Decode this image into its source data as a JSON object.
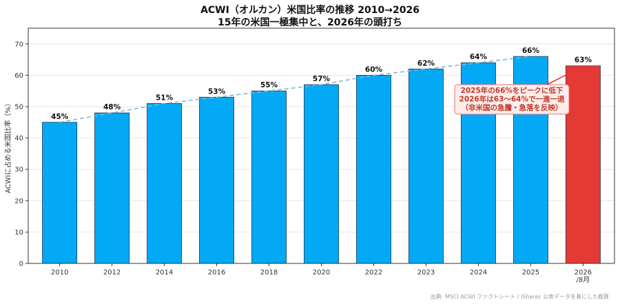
{
  "chart_data": {
    "type": "bar",
    "title": "ACWI（オルカン）米国比率の推移 2010→2026",
    "subtitle": "15年の米国一極集中と、2026年の頭打ち",
    "xlabel": "",
    "ylabel": "ACWIに占める米国比率（%）",
    "ylim": [
      0,
      75
    ],
    "yticks": [
      0,
      10,
      20,
      30,
      40,
      50,
      60,
      70
    ],
    "grid": "horizontal",
    "categories": [
      [
        "2010"
      ],
      [
        "2012"
      ],
      [
        "2014"
      ],
      [
        "2016"
      ],
      [
        "2018"
      ],
      [
        "2020"
      ],
      [
        "2022"
      ],
      [
        "2023"
      ],
      [
        "2024"
      ],
      [
        "2025"
      ],
      [
        "2026",
        "/8月"
      ]
    ],
    "values": [
      45,
      48,
      51,
      53,
      55,
      57,
      60,
      62,
      64,
      66,
      63
    ],
    "data_labels": [
      "45%",
      "48%",
      "51%",
      "53%",
      "55%",
      "57%",
      "60%",
      "62%",
      "64%",
      "66%",
      "63%"
    ],
    "highlight_index": 10,
    "trend_line": {
      "from_index": 0,
      "to_index": 9,
      "style": "dashed"
    },
    "annotation": {
      "lines": [
        "2025年の66%をピークに低下",
        "2026年は63〜64%で一進一退",
        "（非米国の急騰・急落を反映）"
      ],
      "points_to_index": 10
    },
    "source": "出典: MSCI ACWI ファクトシート / iShares 公表データを基にした概算",
    "colors": {
      "bar": "#03a9f4",
      "highlight_bar": "#e53935",
      "bar_edge": "#1f3b57",
      "trend": "#7fb8d6",
      "annotation_text": "#c0392b",
      "annotation_bg": "#fdecea",
      "annotation_border": "#e57373",
      "grid": "#e6e6e6"
    }
  }
}
